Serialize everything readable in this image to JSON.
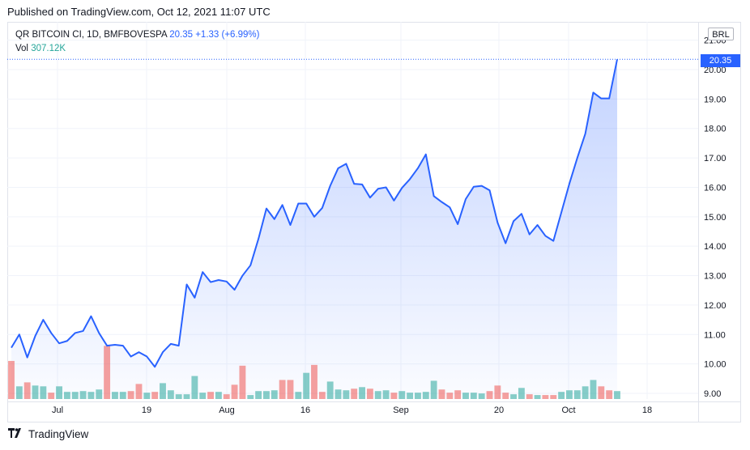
{
  "header": {
    "published": "Published on TradingView.com, Oct 12, 2021 11:07 UTC"
  },
  "legend": {
    "symbol": "QR BITCOIN CI, 1D, BMFBOVESPA",
    "last": "20.35",
    "change": "+1.33 (+6.99%)",
    "vol_label": "Vol",
    "vol_value": "307.12K"
  },
  "currency": "BRL",
  "last_price_label": "20.35",
  "footer": {
    "brand": "TradingView"
  },
  "colors": {
    "line": "#2962ff",
    "area_top": "#2962ff",
    "vol_up": "#26a69a",
    "vol_down": "#ef5350",
    "grid": "#f0f3fa"
  },
  "chart_data": {
    "type": "area",
    "title": "QR BITCOIN CI, 1D, BMFBOVESPA",
    "ylim": [
      8.8,
      21.4
    ],
    "y_ticks": [
      "9.00",
      "10.00",
      "11.00",
      "12.00",
      "13.00",
      "14.00",
      "15.00",
      "16.00",
      "17.00",
      "18.00",
      "19.00",
      "20.00",
      "21.00"
    ],
    "x_ticks": [
      "Jul",
      "19",
      "Aug",
      "16",
      "Sep",
      "20",
      "Oct",
      "18"
    ],
    "grid": true,
    "series": [
      {
        "name": "close",
        "values": [
          10.55,
          11.0,
          10.22,
          10.95,
          11.5,
          11.05,
          10.7,
          10.78,
          11.05,
          11.12,
          11.62,
          11.05,
          10.62,
          10.65,
          10.62,
          10.25,
          10.4,
          10.25,
          9.9,
          10.4,
          10.68,
          10.62,
          12.7,
          12.25,
          13.12,
          12.78,
          12.85,
          12.8,
          12.52,
          13.0,
          13.35,
          14.25,
          15.28,
          14.92,
          15.4,
          14.72,
          15.45,
          15.45,
          15.0,
          15.3,
          16.05,
          16.65,
          16.8,
          16.12,
          16.1,
          15.65,
          15.95,
          16.0,
          15.55,
          15.98,
          16.28,
          16.65,
          17.12,
          15.7,
          15.5,
          15.32,
          14.75,
          15.6,
          16.02,
          16.05,
          15.9,
          14.8,
          14.1,
          14.85,
          15.1,
          14.4,
          14.72,
          14.35,
          14.18,
          15.15,
          16.12,
          17.0,
          17.82,
          19.22,
          19.02,
          19.02,
          20.35
        ]
      },
      {
        "name": "volume",
        "values": [
          4.8,
          1.6,
          2.1,
          1.7,
          1.6,
          0.8,
          1.6,
          0.9,
          0.9,
          1.0,
          0.9,
          1.2,
          6.7,
          0.9,
          0.9,
          1.0,
          1.9,
          0.8,
          0.9,
          2.0,
          1.1,
          0.6,
          0.6,
          2.9,
          0.8,
          0.9,
          0.9,
          0.6,
          1.8,
          4.2,
          0.5,
          1.0,
          1.0,
          1.1,
          2.4,
          2.4,
          0.9,
          3.3,
          4.3,
          0.9,
          2.2,
          1.2,
          1.1,
          1.3,
          1.5,
          1.3,
          1.0,
          1.1,
          0.8,
          1.0,
          0.8,
          0.8,
          0.9,
          2.3,
          1.2,
          0.8,
          1.1,
          0.8,
          0.8,
          0.7,
          1.0,
          1.7,
          0.8,
          0.6,
          1.4,
          0.6,
          0.5,
          0.5,
          0.5,
          0.9,
          1.1,
          1.1,
          1.6,
          2.4,
          1.6,
          1.1,
          1.0
        ]
      }
    ],
    "volume_direction": [
      "d",
      "u",
      "d",
      "u",
      "u",
      "d",
      "u",
      "u",
      "u",
      "u",
      "u",
      "u",
      "d",
      "u",
      "u",
      "d",
      "d",
      "u",
      "d",
      "u",
      "u",
      "u",
      "u",
      "u",
      "u",
      "d",
      "u",
      "d",
      "d",
      "d",
      "u",
      "u",
      "u",
      "u",
      "d",
      "d",
      "u",
      "u",
      "d",
      "d",
      "u",
      "u",
      "u",
      "d",
      "u",
      "d",
      "u",
      "u",
      "d",
      "u",
      "u",
      "u",
      "u",
      "u",
      "d",
      "d",
      "d",
      "u",
      "u",
      "u",
      "d",
      "d",
      "d",
      "u",
      "u",
      "d",
      "u",
      "d",
      "d",
      "u",
      "u",
      "u",
      "u",
      "u",
      "d",
      "d",
      "u"
    ]
  }
}
